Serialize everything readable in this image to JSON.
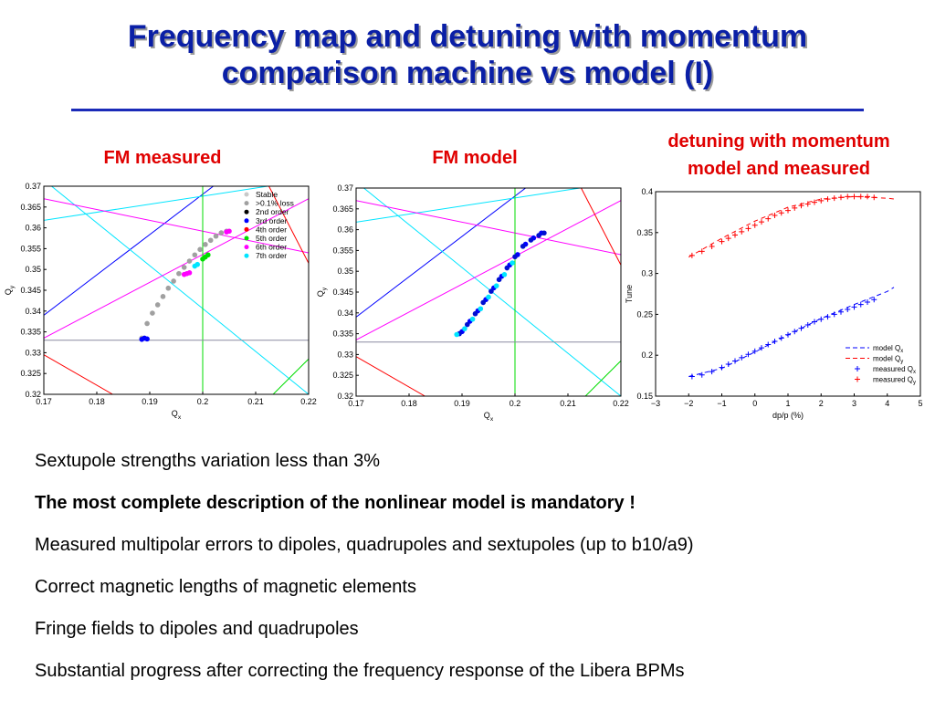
{
  "slide": {
    "title_line1": "Frequency map and detuning with momentum",
    "title_line2": "comparison machine vs model (I)",
    "caption_fm_measured": "FM measured",
    "caption_fm_model": "FM model",
    "caption_detuning_line1": "detuning with momentum",
    "caption_detuning_line2": "model and measured",
    "bullets": [
      {
        "text": "Sextupole strengths variation less than 3%",
        "bold": false
      },
      {
        "text": "The most complete description of the nonlinear model is mandatory !",
        "bold": true
      },
      {
        "text": "Measured multipolar errors to dipoles, quadrupoles and sextupoles (up to b10/a9)",
        "bold": false
      },
      {
        "text": "Correct magnetic lengths of magnetic elements",
        "bold": false
      },
      {
        "text": "Fringe fields to dipoles and quadrupoles",
        "bold": false
      },
      {
        "text": "Substantial progress after correcting the frequency response of the Libera BPMs",
        "bold": false
      }
    ]
  },
  "colors": {
    "title": "#0a1fa6",
    "caption": "#e00000",
    "stable": "#c8c8c8",
    "loss": "#a0a0a0",
    "order2": "#000000",
    "order3": "#0000ff",
    "order4": "#ff0000",
    "order5": "#00dd00",
    "order6": "#ff00ff",
    "order7": "#00e5ff"
  },
  "chart_data": [
    {
      "type": "scatter",
      "xlabel": "Q",
      "xlabel_sub": "x",
      "ylabel": "Q",
      "ylabel_sub": "y",
      "xlim": [
        0.17,
        0.22
      ],
      "ylim": [
        0.32,
        0.37
      ],
      "xticks": [
        "0.17",
        "0.18",
        "0.19",
        "0.2",
        "0.21",
        "0.22"
      ],
      "yticks": [
        "0.32",
        "0.325",
        "0.33",
        "0.335",
        "0.34",
        "0.345",
        "0.35",
        "0.355",
        "0.36",
        "0.365",
        "0.37"
      ],
      "legend": [
        {
          "label": "Stable",
          "color": "#c8c8c8"
        },
        {
          "label": ">0.1% loss",
          "color": "#a0a0a0"
        },
        {
          "label": "2nd order",
          "color": "#000000"
        },
        {
          "label": "3rd order",
          "color": "#0000ff"
        },
        {
          "label": "4th order",
          "color": "#ff0000"
        },
        {
          "label": "5th order",
          "color": "#00dd00"
        },
        {
          "label": "6th order",
          "color": "#ff00ff"
        },
        {
          "label": "7th order",
          "color": "#00e5ff"
        }
      ],
      "resonance_lines": [
        {
          "color": "#0000ff",
          "p1": [
            0.17,
            0.339
          ],
          "p2": [
            0.202,
            0.37
          ]
        },
        {
          "color": "#00e5ff",
          "p1": [
            0.17,
            0.3618
          ],
          "p2": [
            0.22,
            0.3715
          ]
        },
        {
          "color": "#00e5ff",
          "p1": [
            0.17,
            0.3715
          ],
          "p2": [
            0.22,
            0.32
          ]
        },
        {
          "color": "#ff00ff",
          "p1": [
            0.17,
            0.3335
          ],
          "p2": [
            0.22,
            0.367
          ]
        },
        {
          "color": "#ff00ff",
          "p1": [
            0.17,
            0.367
          ],
          "p2": [
            0.22,
            0.354
          ]
        },
        {
          "color": "#ff0000",
          "p1": [
            0.2125,
            0.37
          ],
          "p2": [
            0.22,
            0.3515
          ]
        },
        {
          "color": "#ff0000",
          "p1": [
            0.17,
            0.3295
          ],
          "p2": [
            0.183,
            0.32
          ]
        },
        {
          "color": "#00dd00",
          "p1": [
            0.2133,
            0.32
          ],
          "p2": [
            0.22,
            0.3285
          ]
        },
        {
          "color": "#00dd00",
          "p1": [
            0.2,
            0.32
          ],
          "p2": [
            0.2,
            0.37
          ]
        },
        {
          "color": "#8a8aa0",
          "p1": [
            0.17,
            0.333
          ],
          "p2": [
            0.22,
            0.333
          ]
        }
      ],
      "tune_points": [
        {
          "color": "#a0a0a0",
          "x": [
            0.1885,
            0.1895,
            0.1905,
            0.1915,
            0.1925,
            0.1935,
            0.1945,
            0.1955,
            0.1965,
            0.1975,
            0.1985,
            0.1995,
            0.2005,
            0.2015,
            0.2025,
            0.2035,
            0.2045
          ],
          "y": [
            0.3335,
            0.337,
            0.3395,
            0.3415,
            0.3435,
            0.3455,
            0.3472,
            0.349,
            0.3505,
            0.352,
            0.3535,
            0.3548,
            0.356,
            0.357,
            0.358,
            0.3588,
            0.3592
          ]
        },
        {
          "color": "#0000ff",
          "x": [
            0.1885,
            0.189,
            0.1895
          ],
          "y": [
            0.3332,
            0.3335,
            0.3333
          ]
        },
        {
          "color": "#ff00ff",
          "x": [
            0.1965,
            0.197,
            0.1975,
            0.2045,
            0.205
          ],
          "y": [
            0.3488,
            0.349,
            0.3492,
            0.359,
            0.3592
          ]
        },
        {
          "color": "#00dd00",
          "x": [
            0.2,
            0.2005,
            0.201
          ],
          "y": [
            0.3525,
            0.353,
            0.3535
          ]
        },
        {
          "color": "#00e5ff",
          "x": [
            0.1985,
            0.199
          ],
          "y": [
            0.3508,
            0.3512
          ]
        }
      ]
    },
    {
      "type": "scatter",
      "xlabel": "Q",
      "xlabel_sub": "x",
      "ylabel": "Q",
      "ylabel_sub": "y",
      "xlim": [
        0.17,
        0.22
      ],
      "ylim": [
        0.32,
        0.37
      ],
      "xticks": [
        "0.17",
        "0.18",
        "0.19",
        "0.2",
        "0.21",
        "0.22"
      ],
      "yticks": [
        "0.32",
        "0.325",
        "0.33",
        "0.335",
        "0.34",
        "0.345",
        "0.35",
        "0.355",
        "0.36",
        "0.365",
        "0.37"
      ],
      "resonance_lines": [
        {
          "color": "#0000ff",
          "p1": [
            0.17,
            0.339
          ],
          "p2": [
            0.202,
            0.37
          ]
        },
        {
          "color": "#00e5ff",
          "p1": [
            0.17,
            0.3618
          ],
          "p2": [
            0.22,
            0.3715
          ]
        },
        {
          "color": "#00e5ff",
          "p1": [
            0.17,
            0.3715
          ],
          "p2": [
            0.22,
            0.32
          ]
        },
        {
          "color": "#ff00ff",
          "p1": [
            0.17,
            0.3335
          ],
          "p2": [
            0.22,
            0.367
          ]
        },
        {
          "color": "#ff00ff",
          "p1": [
            0.17,
            0.367
          ],
          "p2": [
            0.22,
            0.354
          ]
        },
        {
          "color": "#ff0000",
          "p1": [
            0.2125,
            0.37
          ],
          "p2": [
            0.22,
            0.3515
          ]
        },
        {
          "color": "#ff0000",
          "p1": [
            0.17,
            0.3295
          ],
          "p2": [
            0.183,
            0.32
          ]
        },
        {
          "color": "#00dd00",
          "p1": [
            0.2133,
            0.32
          ],
          "p2": [
            0.22,
            0.3285
          ]
        },
        {
          "color": "#00dd00",
          "p1": [
            0.2,
            0.32
          ],
          "p2": [
            0.2,
            0.37
          ]
        },
        {
          "color": "#8a8aa0",
          "p1": [
            0.17,
            0.333
          ],
          "p2": [
            0.22,
            0.333
          ]
        }
      ],
      "tune_points": [
        {
          "color": "#0000ff",
          "x": [
            0.19,
            0.1915,
            0.193,
            0.1945,
            0.196,
            0.1975,
            0.199,
            0.2005,
            0.202,
            0.2035,
            0.205
          ],
          "y": [
            0.3355,
            0.338,
            0.3405,
            0.3432,
            0.346,
            0.3488,
            0.3515,
            0.354,
            0.3565,
            0.358,
            0.3592
          ]
        },
        {
          "color": "#0010d0",
          "x": [
            0.1895,
            0.191,
            0.1925,
            0.194,
            0.1955,
            0.197,
            0.1985,
            0.2,
            0.2015,
            0.203,
            0.2045,
            0.2055
          ],
          "y": [
            0.335,
            0.3372,
            0.3398,
            0.3425,
            0.3452,
            0.348,
            0.3508,
            0.3535,
            0.356,
            0.3575,
            0.3586,
            0.3592
          ]
        },
        {
          "color": "#00e5ff",
          "x": [
            0.189,
            0.1905,
            0.192,
            0.1935,
            0.195,
            0.1965,
            0.198,
            0.1995
          ],
          "y": [
            0.3348,
            0.3362,
            0.3385,
            0.341,
            0.3438,
            0.3465,
            0.3492,
            0.352
          ]
        }
      ]
    },
    {
      "type": "scatter",
      "xlabel": "dp/p (%)",
      "ylabel": "Tune",
      "xlim": [
        -3,
        5
      ],
      "ylim": [
        0.15,
        0.4
      ],
      "xticks": [
        "−3",
        "−2",
        "−1",
        "0",
        "1",
        "2",
        "3",
        "4",
        "5"
      ],
      "yticks": [
        "0.15",
        "0.2",
        "0.25",
        "0.3",
        "0.35",
        "0.4"
      ],
      "legend": [
        {
          "label": "model Q",
          "sub": "x",
          "color": "#0000ff",
          "marker": "dash"
        },
        {
          "label": "model Q",
          "sub": "y",
          "color": "#ff0000",
          "marker": "dash"
        },
        {
          "label": "measured Q",
          "sub": "x",
          "color": "#0000ff",
          "marker": "plus"
        },
        {
          "label": "measured Q",
          "sub": "y",
          "color": "#ff0000",
          "marker": "plus"
        }
      ],
      "series": [
        {
          "name": "model Qx",
          "color": "#0000ff",
          "style": "dash",
          "x": [
            -2.0,
            -1.0,
            0.0,
            1.0,
            2.0,
            3.0,
            4.0,
            4.2
          ],
          "y": [
            0.174,
            0.184,
            0.204,
            0.225,
            0.245,
            0.262,
            0.278,
            0.283
          ]
        },
        {
          "name": "model Qy",
          "color": "#ff0000",
          "style": "dash",
          "x": [
            -2.0,
            -1.0,
            0.0,
            1.0,
            2.0,
            3.0,
            4.0,
            4.2
          ],
          "y": [
            0.32,
            0.343,
            0.364,
            0.381,
            0.391,
            0.394,
            0.392,
            0.391
          ]
        },
        {
          "name": "measured Qx",
          "color": "#0000ff",
          "style": "plus",
          "x": [
            -1.9,
            -1.6,
            -1.3,
            -1.0,
            -0.8,
            -0.6,
            -0.4,
            -0.2,
            0.0,
            0.2,
            0.4,
            0.6,
            0.8,
            1.0,
            1.2,
            1.4,
            1.6,
            1.8,
            2.0,
            2.2,
            2.4,
            2.6,
            2.8,
            3.0,
            3.2,
            3.4,
            3.6
          ],
          "y": [
            0.174,
            0.176,
            0.18,
            0.185,
            0.189,
            0.193,
            0.197,
            0.201,
            0.205,
            0.209,
            0.213,
            0.217,
            0.221,
            0.225,
            0.229,
            0.233,
            0.237,
            0.241,
            0.244,
            0.247,
            0.25,
            0.253,
            0.256,
            0.259,
            0.262,
            0.265,
            0.268
          ]
        },
        {
          "name": "measured Qy",
          "color": "#ff0000",
          "style": "plus",
          "x": [
            -1.9,
            -1.6,
            -1.3,
            -1.0,
            -0.8,
            -0.6,
            -0.4,
            -0.2,
            0.0,
            0.2,
            0.4,
            0.6,
            0.8,
            1.0,
            1.2,
            1.4,
            1.6,
            1.8,
            2.0,
            2.2,
            2.4,
            2.6,
            2.8,
            3.0,
            3.2,
            3.4,
            3.6
          ],
          "y": [
            0.322,
            0.327,
            0.333,
            0.339,
            0.343,
            0.347,
            0.351,
            0.355,
            0.359,
            0.363,
            0.367,
            0.371,
            0.374,
            0.377,
            0.38,
            0.383,
            0.385,
            0.387,
            0.389,
            0.391,
            0.392,
            0.393,
            0.394,
            0.394,
            0.394,
            0.394,
            0.393
          ]
        }
      ]
    }
  ]
}
